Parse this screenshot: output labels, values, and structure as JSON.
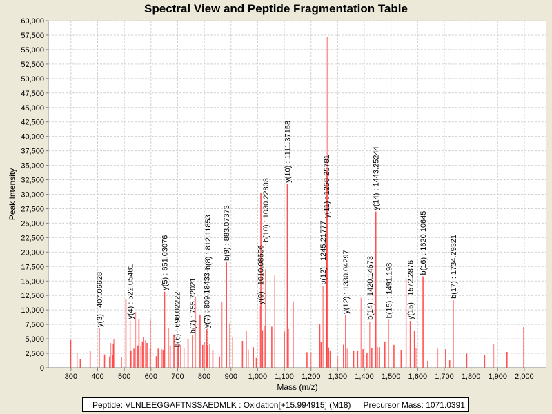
{
  "chart_data": {
    "type": "bar",
    "title": "Spectral View and Peptide Fragmentation Table",
    "xlabel": "Mass (m/z)",
    "ylabel": "Peak Intensity",
    "xlim": [
      215,
      2083
    ],
    "ylim": [
      0,
      60000
    ],
    "x_ticks": [
      300,
      400,
      500,
      600,
      700,
      800,
      900,
      1000,
      1100,
      1200,
      1300,
      1400,
      1500,
      1600,
      1700,
      1800,
      1900,
      2000
    ],
    "x_tick_labels": [
      "300",
      "400",
      "500",
      "600",
      "700",
      "800",
      "900",
      "1,000",
      "1,100",
      "1,200",
      "1,300",
      "1,400",
      "1,500",
      "1,600",
      "1,700",
      "1,800",
      "1,900",
      "2,000"
    ],
    "y_ticks": [
      0,
      2500,
      5000,
      7500,
      10000,
      12500,
      15000,
      17500,
      20000,
      22500,
      25000,
      27500,
      30000,
      32500,
      35000,
      37500,
      40000,
      42500,
      45000,
      47500,
      50000,
      52500,
      55000,
      57500,
      60000
    ],
    "y_tick_labels": [
      "0",
      "2,500",
      "5,000",
      "7,500",
      "10,000",
      "12,500",
      "15,000",
      "17,500",
      "20,000",
      "22,500",
      "25,000",
      "27,500",
      "30,000",
      "32,500",
      "35,000",
      "37,500",
      "40,000",
      "42,500",
      "45,000",
      "47,500",
      "50,000",
      "52,500",
      "55,000",
      "57,500",
      "60,000"
    ],
    "grid": true,
    "bar_color": "#FF4040",
    "peaks": [
      [
        299,
        4800
      ],
      [
        323,
        2500
      ],
      [
        335,
        1550
      ],
      [
        372,
        2850
      ],
      [
        407.06628,
        6800
      ],
      [
        426,
        2300
      ],
      [
        445,
        1950
      ],
      [
        449,
        4300
      ],
      [
        456,
        2200
      ],
      [
        459,
        4200
      ],
      [
        461,
        4900
      ],
      [
        489,
        1900
      ],
      [
        506,
        11900
      ],
      [
        522.05481,
        8150
      ],
      [
        525,
        3000
      ],
      [
        536,
        3300
      ],
      [
        542,
        9650
      ],
      [
        551,
        3850
      ],
      [
        555,
        8350
      ],
      [
        562,
        3700
      ],
      [
        568,
        4550
      ],
      [
        572,
        5350
      ],
      [
        579,
        4750
      ],
      [
        585,
        4300
      ],
      [
        597,
        3300
      ],
      [
        598,
        8400
      ],
      [
        620,
        2000
      ],
      [
        627,
        3300
      ],
      [
        641,
        3200
      ],
      [
        646,
        3100
      ],
      [
        651.03076,
        13150
      ],
      [
        666,
        6900
      ],
      [
        672,
        3850
      ],
      [
        686,
        5750
      ],
      [
        698.02222,
        3300
      ],
      [
        702,
        4050
      ],
      [
        712,
        3950
      ],
      [
        724,
        3400
      ],
      [
        739,
        4900
      ],
      [
        755.72021,
        5700
      ],
      [
        767,
        12200
      ],
      [
        784,
        9200
      ],
      [
        794,
        3950
      ],
      [
        801,
        4500
      ],
      [
        809.18433,
        6650
      ],
      [
        812.11853,
        3950
      ],
      [
        820,
        4100
      ],
      [
        832,
        3100
      ],
      [
        857,
        1950
      ],
      [
        866,
        11350
      ],
      [
        883.07373,
        18250
      ],
      [
        896,
        7700
      ],
      [
        906,
        5300
      ],
      [
        943,
        4650
      ],
      [
        957,
        6400
      ],
      [
        965,
        3150
      ],
      [
        984,
        3550
      ],
      [
        995,
        1700
      ],
      [
        1010.08606,
        10700
      ],
      [
        1012,
        30250
      ],
      [
        1018,
        6500
      ],
      [
        1027,
        7300
      ],
      [
        1030.22803,
        17050
      ],
      [
        1053,
        7100
      ],
      [
        1064,
        15950
      ],
      [
        1100,
        6300
      ],
      [
        1111.37158,
        31750
      ],
      [
        1116,
        6700
      ],
      [
        1133,
        11500
      ],
      [
        1185,
        2700
      ],
      [
        1200,
        2700
      ],
      [
        1233,
        7500
      ],
      [
        1238,
        4500
      ],
      [
        1245.21777,
        14100
      ],
      [
        1258.25781,
        21500
      ],
      [
        1260,
        34000
      ],
      [
        1261,
        57250
      ],
      [
        1266,
        3500
      ],
      [
        1272,
        3000
      ],
      [
        1300,
        2000
      ],
      [
        1322,
        4000
      ],
      [
        1330.04297,
        9100
      ],
      [
        1336,
        3300
      ],
      [
        1360,
        3000
      ],
      [
        1375,
        3000
      ],
      [
        1388,
        12100
      ],
      [
        1395,
        3200
      ],
      [
        1410,
        2600
      ],
      [
        1420.14673,
        8000
      ],
      [
        1428,
        3400
      ],
      [
        1443.25244,
        27000
      ],
      [
        1450,
        3600
      ],
      [
        1457,
        3550
      ],
      [
        1477,
        4550
      ],
      [
        1491.198,
        8300
      ],
      [
        1511,
        3950
      ],
      [
        1538,
        3100
      ],
      [
        1557,
        15450
      ],
      [
        1572.2876,
        8100
      ],
      [
        1588,
        6400
      ],
      [
        1594,
        3450
      ],
      [
        1620.10645,
        15800
      ],
      [
        1638,
        1200
      ],
      [
        1675,
        3300
      ],
      [
        1705,
        3200
      ],
      [
        1720,
        1300
      ],
      [
        1734.29321,
        11700
      ],
      [
        1784,
        2450
      ],
      [
        1851,
        2250
      ],
      [
        1885,
        4150
      ],
      [
        1935,
        2750
      ],
      [
        1998,
        7050
      ]
    ],
    "annotations": [
      {
        "label": "y(3) : 407.06628",
        "mass": 407.06628,
        "intensity": 6800
      },
      {
        "label": "y(4) : 522.05481",
        "mass": 522.05481,
        "intensity": 8150
      },
      {
        "label": "y(5) : 651.03076",
        "mass": 651.03076,
        "intensity": 13150
      },
      {
        "label": "b(6) : 698.02222",
        "mass": 698.02222,
        "intensity": 3300
      },
      {
        "label": "b(7) : 755.72021",
        "mass": 755.72021,
        "intensity": 5700
      },
      {
        "label": "b(8) : 812.11853",
        "mass": 812.11853,
        "intensity": 3950
      },
      {
        "label": "y(7) : 809.18433",
        "mass": 809.18433,
        "intensity": 6650
      },
      {
        "label": "b(9) : 883.07373",
        "mass": 883.07373,
        "intensity": 18250
      },
      {
        "label": "y(9) : 1010.08606",
        "mass": 1010.08606,
        "intensity": 10700
      },
      {
        "label": "b(10) : 1030.22803",
        "mass": 1030.22803,
        "intensity": 17050
      },
      {
        "label": "y(10) : 1111.37158",
        "mass": 1111.37158,
        "intensity": 31750
      },
      {
        "label": "b(12) : 1245.21777",
        "mass": 1245.21777,
        "intensity": 14100
      },
      {
        "label": "y(11) : 1258.25781",
        "mass": 1258.25781,
        "intensity": 21500
      },
      {
        "label": "y(12) : 1330.04297",
        "mass": 1330.04297,
        "intensity": 9100
      },
      {
        "label": "b(14) : 1420.14673",
        "mass": 1420.14673,
        "intensity": 8000
      },
      {
        "label": "y(14) : 1443.25244",
        "mass": 1443.25244,
        "intensity": 27000
      },
      {
        "label": "b(15) : 1491.198",
        "mass": 1491.198,
        "intensity": 8300
      },
      {
        "label": "y(15) : 1572.2876",
        "mass": 1572.2876,
        "intensity": 8100
      },
      {
        "label": "b(16) : 1620.10645",
        "mass": 1620.10645,
        "intensity": 15800
      },
      {
        "label": "b(17) : 1734.29321",
        "mass": 1734.29321,
        "intensity": 11700
      }
    ]
  },
  "legend": {
    "peptide": "Peptide: VLNLEEGGAFTNSSAEDMLK : Oxidation[+15.994915] (M18)",
    "precursor": "Precursor Mass: 1071.0391"
  }
}
